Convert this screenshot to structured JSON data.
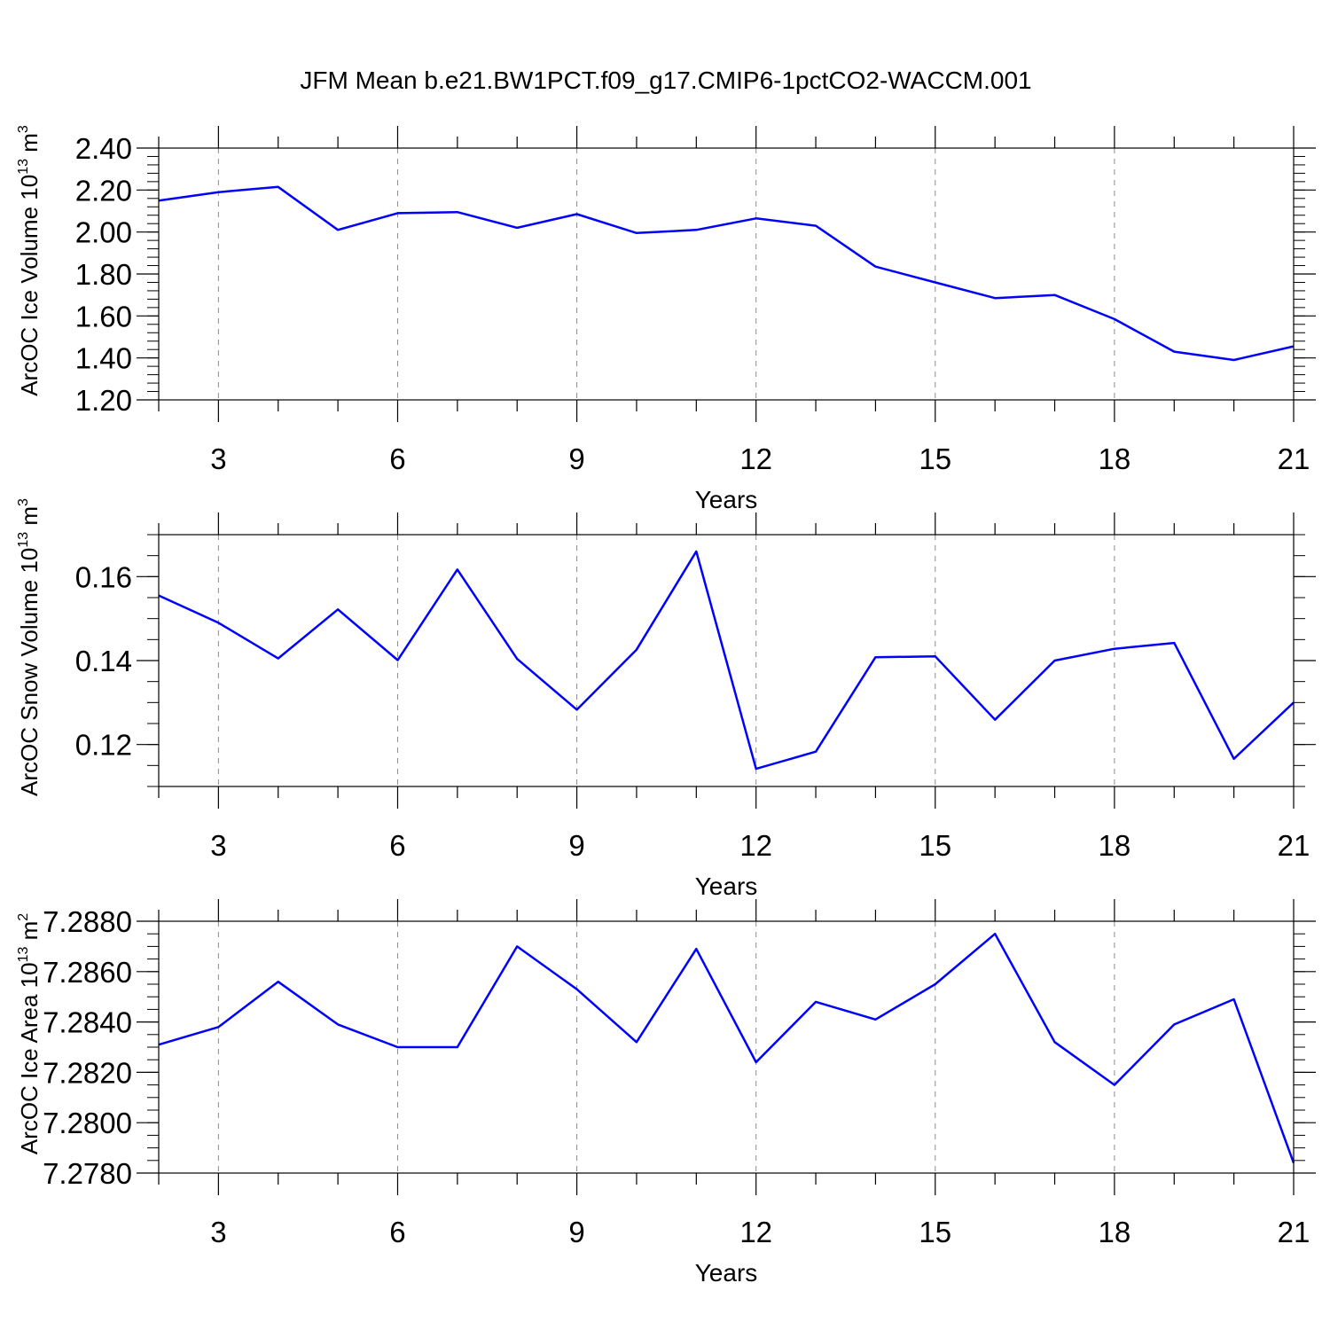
{
  "title": "JFM Mean b.e21.BW1PCT.f09_g17.CMIP6-1pctCO2-WACCM.001",
  "colors": {
    "line": "#0000ff",
    "axis": "#000000",
    "grid": "#8c8c8c"
  },
  "chart_data": [
    {
      "type": "line",
      "ylabel": "ArcOC Ice Volume",
      "yunit_base": "10",
      "yunit_exp": "13",
      "yunit_m": "m",
      "yunit_m_exp": "3",
      "xlabel": "Years",
      "xlim": [
        2,
        21
      ],
      "ylim": [
        1.2,
        2.4
      ],
      "yticks": [
        1.2,
        1.4,
        1.6,
        1.8,
        2.0,
        2.2,
        2.4
      ],
      "ytick_labels": [
        "1.20",
        "1.40",
        "1.60",
        "1.80",
        "2.00",
        "2.20",
        "2.40"
      ],
      "yminor_step": 0.04,
      "xticks": [
        3,
        6,
        9,
        12,
        15,
        18,
        21
      ],
      "xtick_labels": [
        "3",
        "6",
        "9",
        "12",
        "15",
        "18",
        "21"
      ],
      "x": [
        2,
        3,
        4,
        5,
        6,
        7,
        8,
        9,
        10,
        11,
        12,
        13,
        14,
        15,
        16,
        17,
        18,
        19,
        20,
        21
      ],
      "values": [
        2.15,
        2.19,
        2.215,
        2.01,
        2.09,
        2.095,
        2.02,
        2.085,
        1.995,
        2.01,
        2.065,
        2.03,
        1.835,
        1.76,
        1.685,
        1.7,
        1.585,
        1.43,
        1.39,
        1.455
      ]
    },
    {
      "type": "line",
      "ylabel": "ArcOC Snow Volume",
      "yunit_base": "10",
      "yunit_exp": "13",
      "yunit_m": "m",
      "yunit_m_exp": "3",
      "xlabel": "Years",
      "xlim": [
        2,
        21
      ],
      "ylim": [
        0.11,
        0.17
      ],
      "yticks": [
        0.12,
        0.14,
        0.16
      ],
      "ytick_labels": [
        "0.12",
        "0.14",
        "0.16"
      ],
      "yminor_step": 0.005,
      "xticks": [
        3,
        6,
        9,
        12,
        15,
        18,
        21
      ],
      "xtick_labels": [
        "3",
        "6",
        "9",
        "12",
        "15",
        "18",
        "21"
      ],
      "x": [
        2,
        3,
        4,
        5,
        6,
        7,
        8,
        9,
        10,
        11,
        12,
        13,
        14,
        15,
        16,
        17,
        18,
        19,
        20,
        21
      ],
      "values": [
        0.1555,
        0.149,
        0.1405,
        0.1522,
        0.1401,
        0.1617,
        0.1404,
        0.1283,
        0.1426,
        0.166,
        0.1142,
        0.1183,
        0.1408,
        0.141,
        0.1259,
        0.14,
        0.1428,
        0.1442,
        0.1166,
        0.13
      ]
    },
    {
      "type": "line",
      "ylabel": "ArcOC Ice Area",
      "yunit_base": "10",
      "yunit_exp": "13",
      "yunit_m": "m",
      "yunit_m_exp": "2",
      "xlabel": "Years",
      "xlim": [
        2,
        21
      ],
      "ylim": [
        7.278,
        7.288
      ],
      "yticks": [
        7.278,
        7.28,
        7.282,
        7.284,
        7.286,
        7.288
      ],
      "ytick_labels": [
        "7.2780",
        "7.2800",
        "7.2820",
        "7.2840",
        "7.2860",
        "7.2880"
      ],
      "yminor_step": 0.0005,
      "xticks": [
        3,
        6,
        9,
        12,
        15,
        18,
        21
      ],
      "xtick_labels": [
        "3",
        "6",
        "9",
        "12",
        "15",
        "18",
        "21"
      ],
      "x": [
        2,
        3,
        4,
        5,
        6,
        7,
        8,
        9,
        10,
        11,
        12,
        13,
        14,
        15,
        16,
        17,
        18,
        19,
        20,
        21
      ],
      "values": [
        7.2831,
        7.2838,
        7.2856,
        7.2839,
        7.283,
        7.283,
        7.287,
        7.2853,
        7.2832,
        7.2869,
        7.2824,
        7.2848,
        7.2841,
        7.2855,
        7.2875,
        7.2832,
        7.2815,
        7.2839,
        7.2849,
        7.2784
      ]
    }
  ]
}
